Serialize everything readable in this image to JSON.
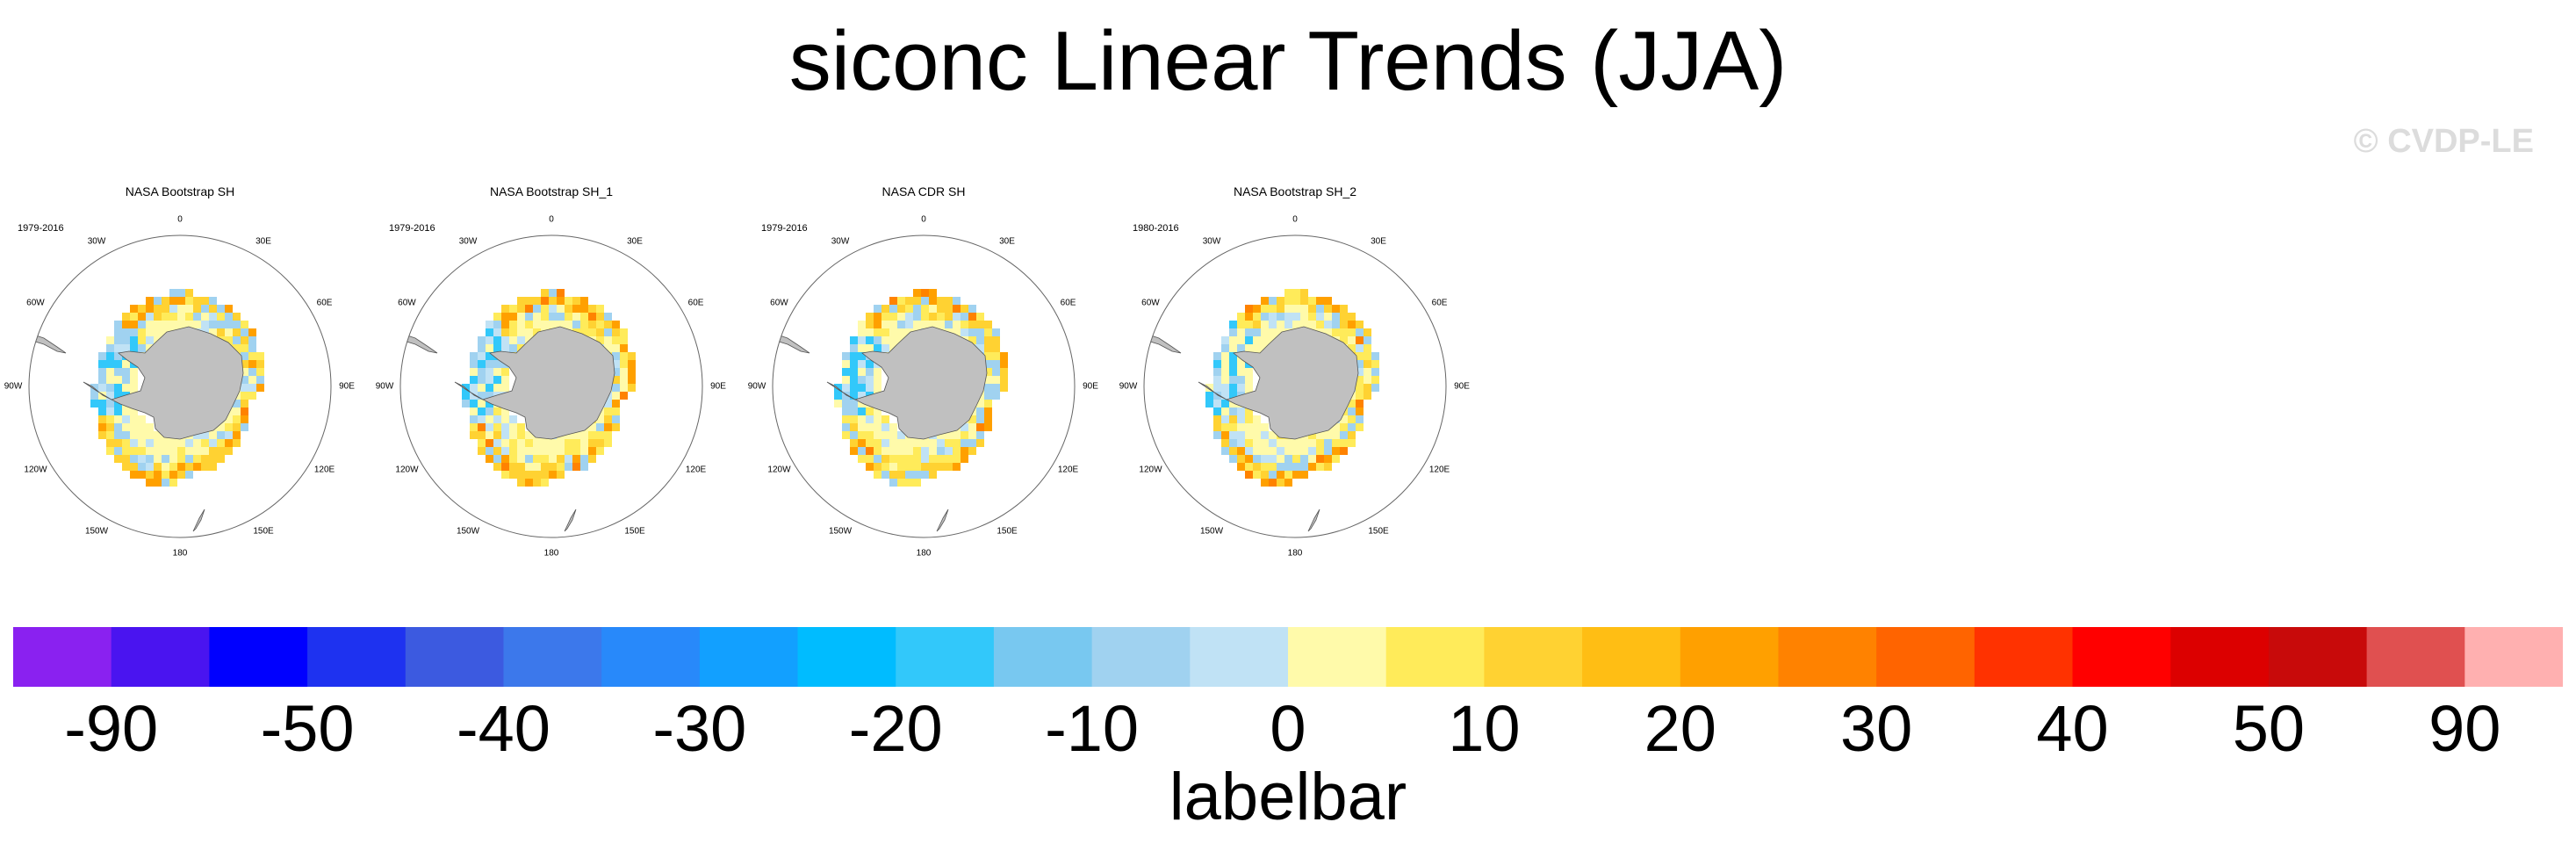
{
  "title": "siconc Linear Trends (JJA)",
  "watermark": "© CVDP-LE",
  "panels": [
    {
      "title": "NASA Bootstrap SH",
      "period": "1979-2016"
    },
    {
      "title": "NASA Bootstrap SH_1",
      "period": "1979-2016"
    },
    {
      "title": "NASA CDR SH",
      "period": "1979-2016"
    },
    {
      "title": "NASA Bootstrap SH_2",
      "period": "1980-2016"
    }
  ],
  "longitude_labels": [
    "0",
    "30E",
    "60E",
    "90E",
    "120E",
    "150E",
    "180",
    "150W",
    "120W",
    "90W",
    "60W",
    "30W"
  ],
  "labelbar": {
    "title": "labelbar",
    "tick_labels": [
      "-90",
      "-50",
      "-40",
      "-30",
      "-20",
      "-10",
      "0",
      "10",
      "20",
      "30",
      "40",
      "50",
      "90"
    ],
    "colors": [
      "#8a21f0",
      "#4a14f0",
      "#0000ff",
      "#1e32f0",
      "#3c5ae0",
      "#3c78eb",
      "#2889fa",
      "#12a0ff",
      "#00bcff",
      "#32c8fa",
      "#78c8f0",
      "#a0d2f0",
      "#c0e2f5",
      "#fffaaa",
      "#ffeb5a",
      "#ffd232",
      "#ffbe14",
      "#ffa000",
      "#ff8200",
      "#ff6400",
      "#ff3200",
      "#ff0000",
      "#dc0000",
      "#c80a0a",
      "#e05050",
      "#ffb0b0"
    ]
  },
  "colors": {
    "land": "#c0c0c0",
    "ocean": "#ffffff",
    "coast": "#555555"
  }
}
